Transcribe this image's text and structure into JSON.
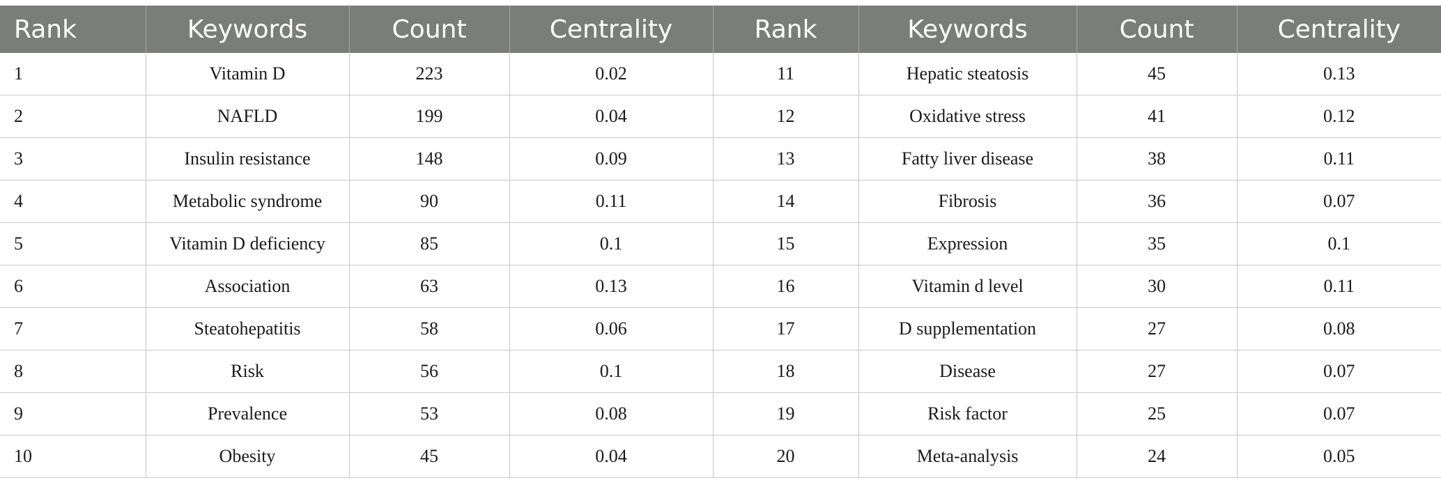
{
  "table": {
    "headers": [
      "Rank",
      "Keywords",
      "Count",
      "Centrality",
      "Rank",
      "Keywords",
      "Count",
      "Centrality"
    ],
    "rows": [
      [
        "1",
        "Vitamin D",
        "223",
        "0.02",
        "11",
        "Hepatic steatosis",
        "45",
        "0.13"
      ],
      [
        "2",
        "NAFLD",
        "199",
        "0.04",
        "12",
        "Oxidative stress",
        "41",
        "0.12"
      ],
      [
        "3",
        "Insulin resistance",
        "148",
        "0.09",
        "13",
        "Fatty liver disease",
        "38",
        "0.11"
      ],
      [
        "4",
        "Metabolic syndrome",
        "90",
        "0.11",
        "14",
        "Fibrosis",
        "36",
        "0.07"
      ],
      [
        "5",
        "Vitamin D deficiency",
        "85",
        "0.1",
        "15",
        "Expression",
        "35",
        "0.1"
      ],
      [
        "6",
        "Association",
        "63",
        "0.13",
        "16",
        "Vitamin d level",
        "30",
        "0.11"
      ],
      [
        "7",
        "Steatohepatitis",
        "58",
        "0.06",
        "17",
        "D supplementation",
        "27",
        "0.08"
      ],
      [
        "8",
        "Risk",
        "56",
        "0.1",
        "18",
        "Disease",
        "27",
        "0.07"
      ],
      [
        "9",
        "Prevalence",
        "53",
        "0.08",
        "19",
        "Risk factor",
        "25",
        "0.07"
      ],
      [
        "10",
        "Obesity",
        "45",
        "0.04",
        "20",
        "Meta-analysis",
        "24",
        "0.05"
      ]
    ]
  },
  "colors": {
    "header_background": "#7b7d7b",
    "header_text": "#ffffff",
    "grid_line": "#c8c8c8"
  }
}
